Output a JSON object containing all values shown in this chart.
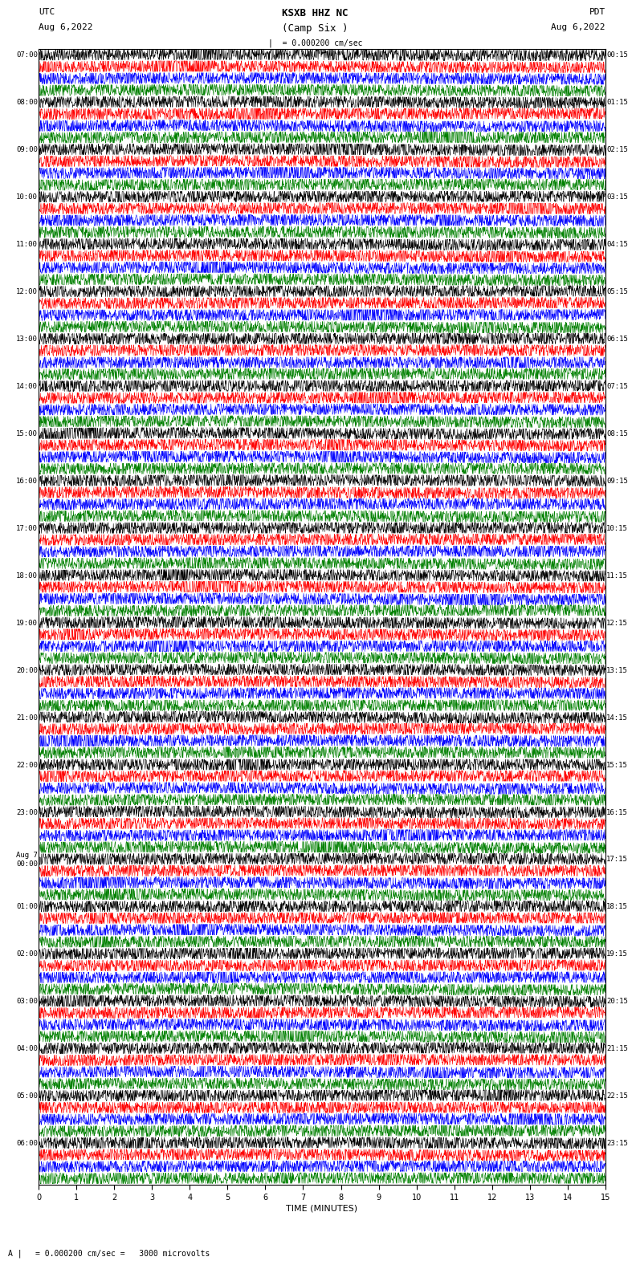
{
  "title_line1": "KSXB HHZ NC",
  "title_line2": "(Camp Six )",
  "scale_label": "= 0.000200 cm/sec",
  "utc_label": "UTC",
  "utc_date": "Aug 6,2022",
  "pdt_label": "PDT",
  "pdt_date": "Aug 6,2022",
  "scale_bar_label": "= 0.000200 cm/sec =   3000 microvolts",
  "xlabel": "TIME (MINUTES)",
  "left_times_utc": [
    "07:00",
    "08:00",
    "09:00",
    "10:00",
    "11:00",
    "12:00",
    "13:00",
    "14:00",
    "15:00",
    "16:00",
    "17:00",
    "18:00",
    "19:00",
    "20:00",
    "21:00",
    "22:00",
    "23:00",
    "Aug 7\n00:00",
    "01:00",
    "02:00",
    "03:00",
    "04:00",
    "05:00",
    "06:00"
  ],
  "right_times_pdt": [
    "00:15",
    "01:15",
    "02:15",
    "03:15",
    "04:15",
    "05:15",
    "06:15",
    "07:15",
    "08:15",
    "09:15",
    "10:15",
    "11:15",
    "12:15",
    "13:15",
    "14:15",
    "15:15",
    "16:15",
    "17:15",
    "18:15",
    "19:15",
    "20:15",
    "21:15",
    "22:15",
    "23:15"
  ],
  "n_rows": 24,
  "traces_per_row": 4,
  "trace_colors": [
    "black",
    "red",
    "blue",
    "green"
  ],
  "fig_width": 8.5,
  "fig_height": 16.13,
  "bg_color": "white",
  "xmin": 0,
  "xmax": 15,
  "xticks": [
    0,
    1,
    2,
    3,
    4,
    5,
    6,
    7,
    8,
    9,
    10,
    11,
    12,
    13,
    14,
    15
  ]
}
